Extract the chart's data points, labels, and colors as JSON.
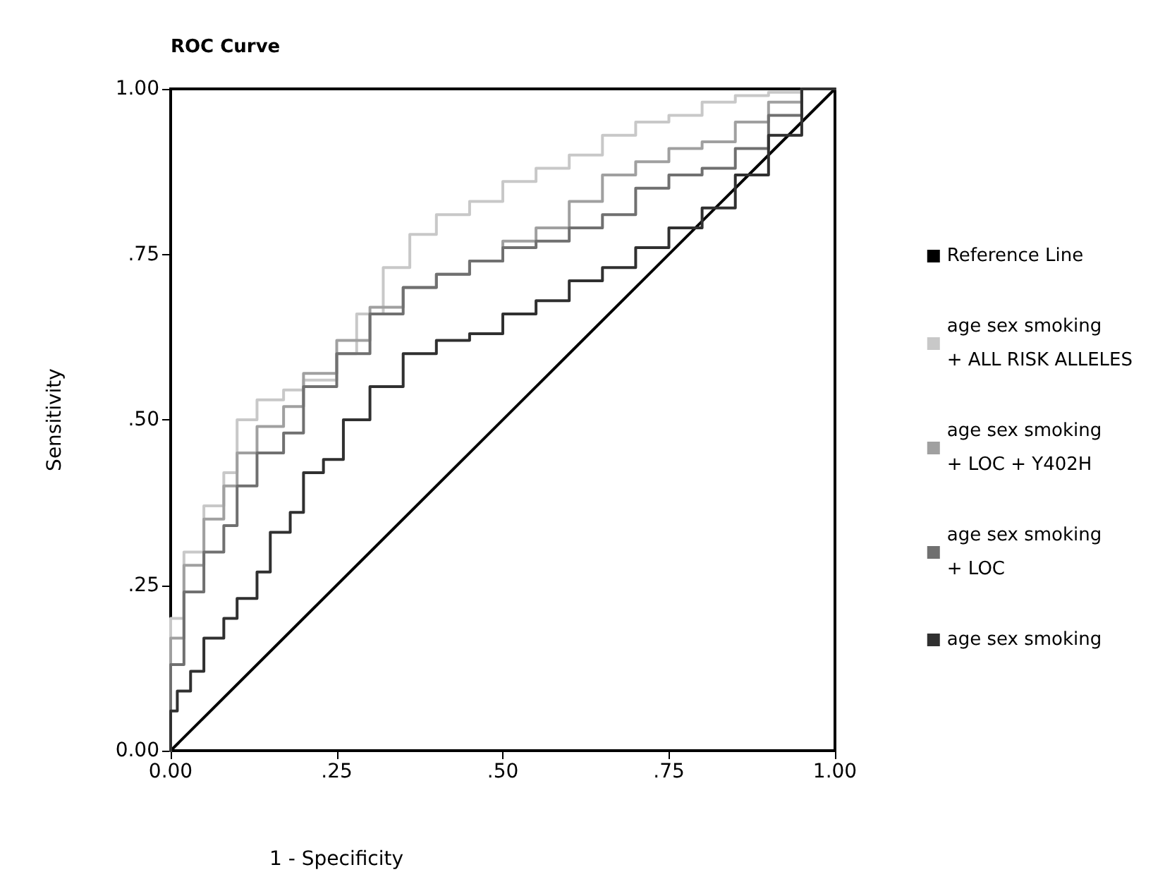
{
  "chart_data": {
    "type": "step",
    "title": "ROC Curve",
    "xlabel": "1 - Specificity",
    "ylabel": "Sensitivity",
    "xlim": [
      0,
      1
    ],
    "ylim": [
      0,
      1
    ],
    "xticks": [
      {
        "value": 0,
        "label": "0.00"
      },
      {
        "value": 0.25,
        "label": ".25"
      },
      {
        "value": 0.5,
        "label": ".50"
      },
      {
        "value": 0.75,
        "label": ".75"
      },
      {
        "value": 1,
        "label": "1.00"
      }
    ],
    "yticks": [
      {
        "value": 0,
        "label": "0.00"
      },
      {
        "value": 0.25,
        "label": ".25"
      },
      {
        "value": 0.5,
        "label": ".50"
      },
      {
        "value": 0.75,
        "label": ".75"
      },
      {
        "value": 1,
        "label": "1.00"
      }
    ],
    "grid": false,
    "legend": "right",
    "marker": "none",
    "line_style": "solid",
    "series": [
      {
        "name": "Reference Line",
        "type": "line",
        "color": "#000000",
        "x": [
          0,
          1
        ],
        "values": [
          0,
          1
        ]
      },
      {
        "name": "age sex smoking\n+ ALL RISK ALLELES",
        "color": "#c8c8c8",
        "x": [
          0,
          0.02,
          0.05,
          0.08,
          0.1,
          0.13,
          0.17,
          0.2,
          0.25,
          0.28,
          0.32,
          0.36,
          0.4,
          0.45,
          0.5,
          0.55,
          0.6,
          0.65,
          0.7,
          0.75,
          0.8,
          0.85,
          0.9,
          0.95,
          1
        ],
        "values": [
          0,
          0.2,
          0.3,
          0.37,
          0.42,
          0.5,
          0.53,
          0.545,
          0.56,
          0.6,
          0.66,
          0.73,
          0.78,
          0.81,
          0.83,
          0.86,
          0.88,
          0.9,
          0.93,
          0.95,
          0.96,
          0.98,
          0.99,
          0.995,
          1
        ]
      },
      {
        "name": "age sex smoking\n+ LOC + Y402H",
        "color": "#a0a0a0",
        "x": [
          0,
          0.02,
          0.05,
          0.08,
          0.1,
          0.13,
          0.17,
          0.2,
          0.25,
          0.3,
          0.35,
          0.4,
          0.45,
          0.5,
          0.55,
          0.6,
          0.65,
          0.7,
          0.75,
          0.8,
          0.85,
          0.9,
          0.95,
          1
        ],
        "values": [
          0,
          0.17,
          0.28,
          0.35,
          0.4,
          0.45,
          0.49,
          0.52,
          0.57,
          0.62,
          0.67,
          0.7,
          0.72,
          0.74,
          0.77,
          0.79,
          0.83,
          0.87,
          0.89,
          0.91,
          0.92,
          0.95,
          0.98,
          1
        ]
      },
      {
        "name": "age sex smoking\n+ LOC",
        "color": "#707070",
        "x": [
          0,
          0.02,
          0.05,
          0.08,
          0.1,
          0.13,
          0.17,
          0.2,
          0.25,
          0.3,
          0.35,
          0.4,
          0.45,
          0.5,
          0.55,
          0.6,
          0.65,
          0.7,
          0.75,
          0.8,
          0.85,
          0.9,
          0.95,
          1
        ],
        "values": [
          0,
          0.13,
          0.24,
          0.3,
          0.34,
          0.4,
          0.45,
          0.48,
          0.55,
          0.6,
          0.66,
          0.7,
          0.72,
          0.74,
          0.76,
          0.77,
          0.79,
          0.81,
          0.85,
          0.87,
          0.88,
          0.91,
          0.96,
          1
        ]
      },
      {
        "name": "age sex smoking",
        "color": "#303030",
        "x": [
          0,
          0.01,
          0.03,
          0.05,
          0.08,
          0.1,
          0.13,
          0.15,
          0.18,
          0.2,
          0.23,
          0.26,
          0.3,
          0.35,
          0.4,
          0.45,
          0.5,
          0.55,
          0.6,
          0.65,
          0.7,
          0.75,
          0.8,
          0.85,
          0.9,
          0.95,
          1
        ],
        "values": [
          0,
          0.06,
          0.09,
          0.12,
          0.17,
          0.2,
          0.23,
          0.27,
          0.33,
          0.36,
          0.42,
          0.44,
          0.5,
          0.55,
          0.6,
          0.62,
          0.63,
          0.66,
          0.68,
          0.71,
          0.73,
          0.76,
          0.79,
          0.82,
          0.87,
          0.93,
          1
        ]
      }
    ]
  }
}
